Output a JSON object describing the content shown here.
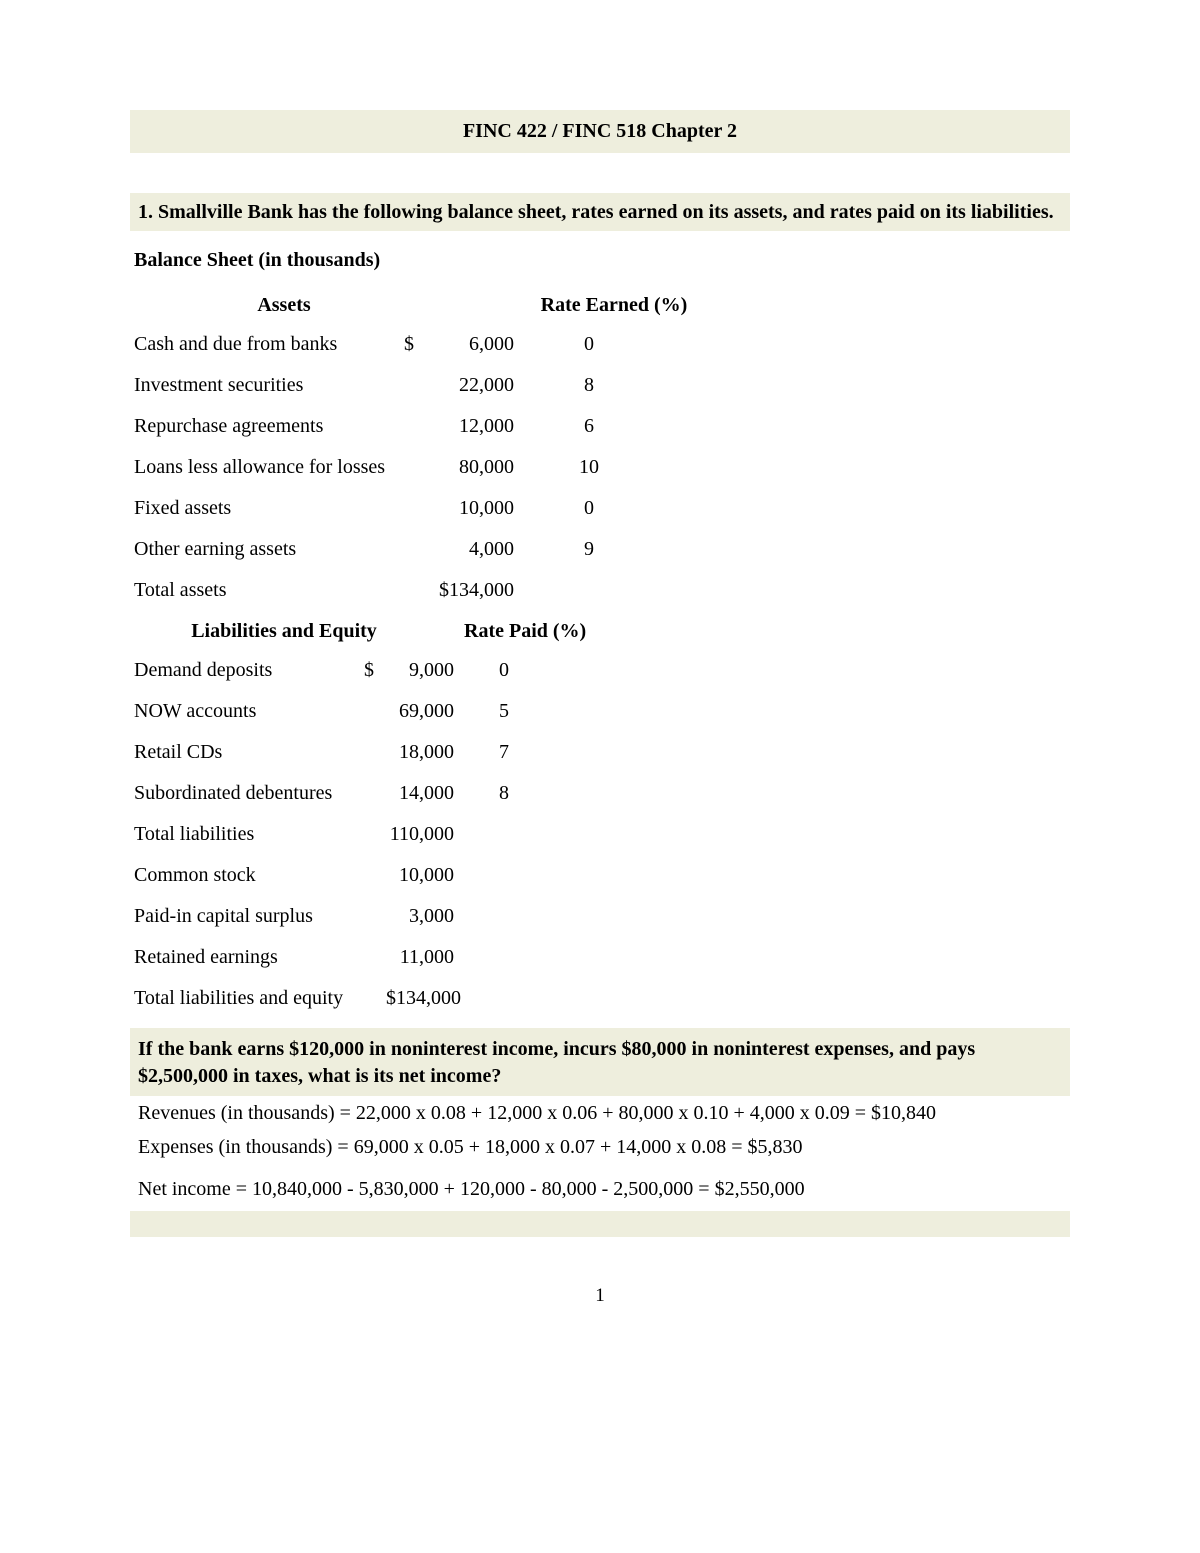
{
  "colors": {
    "highlight_bg": "#eeeedd",
    "page_bg": "#ffffff",
    "text_color": "#000000"
  },
  "header": {
    "title": "FINC 422 / FINC 518   Chapter 2"
  },
  "problem": {
    "text": "1. Smallville Bank has the following balance sheet, rates earned on its assets, and rates paid on its liabilities."
  },
  "balance_sheet": {
    "subtitle": "Balance Sheet (in thousands)",
    "assets": {
      "header_left": "Assets",
      "header_right": "Rate Earned (%)",
      "rows": [
        {
          "label": "Cash and due from banks",
          "currency": "$",
          "amount": "6,000",
          "rate": "0"
        },
        {
          "label": "Investment securities",
          "currency": "",
          "amount": "22,000",
          "rate": "8"
        },
        {
          "label": "Repurchase agreements",
          "currency": "",
          "amount": "12,000",
          "rate": "6"
        },
        {
          "label": "Loans less allowance for losses",
          "currency": "",
          "amount": "80,000",
          "rate": "10"
        },
        {
          "label": "Fixed assets",
          "currency": "",
          "amount": "10,000",
          "rate": "0"
        },
        {
          "label": "Other earning assets",
          "currency": "",
          "amount": "4,000",
          "rate": "9"
        }
      ],
      "total": {
        "label": "Total assets",
        "currency": "",
        "amount": "$134,000",
        "rate": ""
      }
    },
    "liabilities": {
      "header_left": "Liabilities and Equity",
      "header_right": "Rate Paid (%)",
      "rows": [
        {
          "label": "Demand deposits",
          "currency": "$",
          "amount": "9,000",
          "rate": "0"
        },
        {
          "label": "NOW accounts",
          "currency": "",
          "amount": "69,000",
          "rate": "5"
        },
        {
          "label": "Retail CDs",
          "currency": "",
          "amount": "18,000",
          "rate": "7"
        },
        {
          "label": "Subordinated debentures",
          "currency": "",
          "amount": "14,000",
          "rate": "8"
        },
        {
          "label": "Total liabilities",
          "currency": "",
          "amount": "110,000",
          "rate": ""
        },
        {
          "label": "Common stock",
          "currency": "",
          "amount": "10,000",
          "rate": ""
        },
        {
          "label": "Paid-in capital surplus",
          "currency": "",
          "amount": "3,000",
          "rate": ""
        },
        {
          "label": "Retained earnings",
          "currency": "",
          "amount": "11,000",
          "rate": ""
        }
      ],
      "total": {
        "label": "Total liabilities and equity",
        "currency": "",
        "amount": "$134,000",
        "rate": ""
      }
    }
  },
  "question": {
    "text": "If the bank earns $120,000 in noninterest income, incurs $80,000 in noninterest expenses, and pays $2,500,000 in taxes, what is its net income?"
  },
  "answer": {
    "line1": "Revenues (in thousands) =  22,000 x 0.08 + 12,000 x 0.06 + 80,000 x 0.10 + 4,000 x 0.09 = $10,840",
    "line2": "Expenses (in thousands) = 69,000 x 0.05 + 18,000 x 0.07 + 14,000 x 0.08 = $5,830",
    "net": "Net income = 10,840,000 - 5,830,000 + 120,000 - 80,000 - 2,500,000 = $2,550,000"
  },
  "page_number": "1"
}
